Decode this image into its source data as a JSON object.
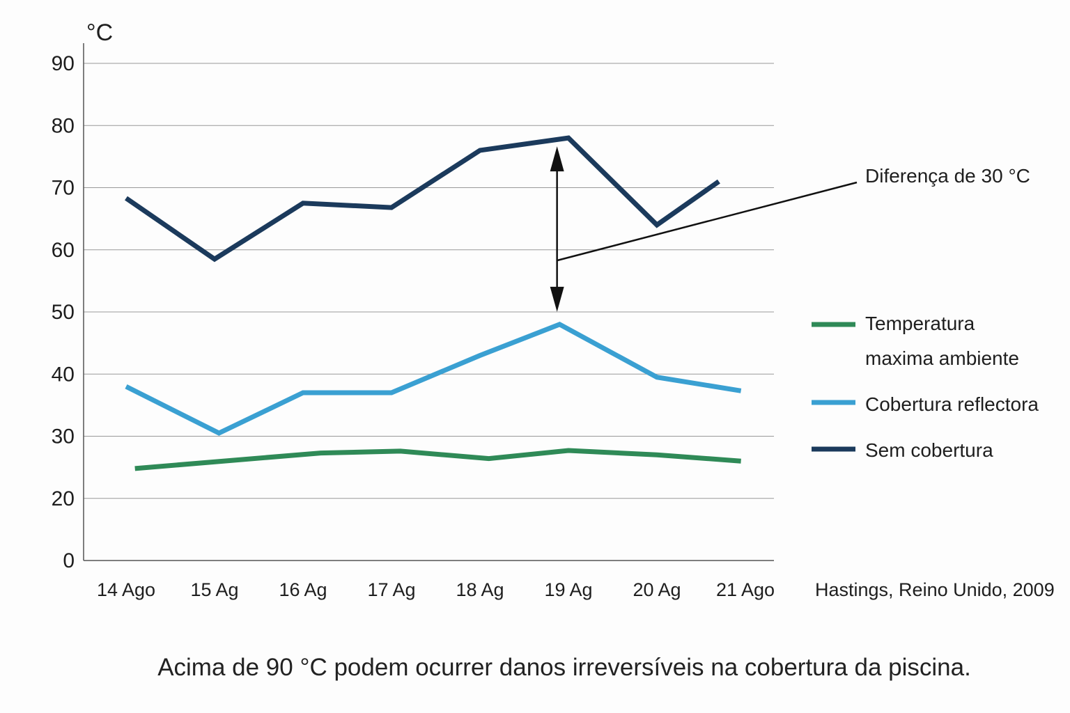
{
  "chart_data": {
    "type": "line",
    "ylabel": "°C",
    "yticks": [
      0,
      20,
      30,
      40,
      50,
      60,
      70,
      80,
      90
    ],
    "ylim": [
      0,
      90
    ],
    "categories": [
      "14 Ago",
      "15 Ag",
      "16 Ag",
      "17 Ag",
      "18 Ag",
      "19 Ag",
      "20 Ag",
      "21 Ago"
    ],
    "grid": true,
    "series": [
      {
        "name": "Sem cobertura",
        "color": "#1b3a5c",
        "x": [
          0,
          1,
          2,
          3,
          4,
          5,
          6,
          6.7
        ],
        "values": [
          68.3,
          58.5,
          67.5,
          66.8,
          76,
          78,
          64,
          71
        ]
      },
      {
        "name": "Cobertura reflectora",
        "color": "#3aa0d2",
        "x": [
          0,
          1.05,
          2,
          3,
          4,
          4.9,
          6,
          6.95
        ],
        "values": [
          38,
          30.5,
          37,
          37,
          43,
          48,
          39.5,
          37.3
        ]
      },
      {
        "name": "Temperatura\nmaxima ambiente",
        "color": "#2f8a57",
        "x": [
          0.1,
          1.1,
          2.2,
          3.1,
          4.1,
          5,
          6,
          6.95
        ],
        "values": [
          24.8,
          26,
          27.3,
          27.6,
          26.4,
          27.7,
          27,
          26
        ]
      }
    ],
    "legend": {
      "placement": "right",
      "items": [
        "Temperatura",
        "maxima ambiente",
        "Cobertura reflectora",
        "Sem cobertura"
      ]
    },
    "annotation": {
      "text": "Diferença de 30 °C",
      "from_value": 48,
      "to_value": 78,
      "x": 4.95
    },
    "source": "Hastings, Reino Unido, 2009",
    "caption": "Acima de 90 °C podem ocurrer danos irreversíveis na cobertura da piscina."
  }
}
